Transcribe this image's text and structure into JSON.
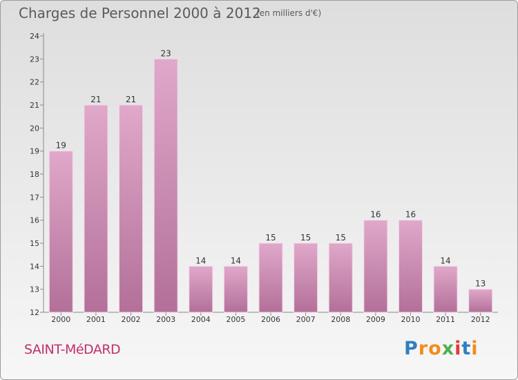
{
  "header": {
    "title": "Charges de Personnel 2000 à 2012",
    "subtitle": "(en milliers d'€)"
  },
  "footer": {
    "place": "SAINT-MéDARD",
    "logo_letters": [
      "P",
      "r",
      "o",
      "x",
      "i",
      "t",
      "i"
    ]
  },
  "colors": {
    "bar_top": "#e0a8ca",
    "bar_bottom": "#b37099",
    "place_text": "#c0306a",
    "logo": [
      "#2e7fc1",
      "#f28c1e",
      "#f28c1e",
      "#4caf50",
      "#e53935",
      "#2e7fc1",
      "#f28c1e"
    ]
  },
  "chart_data": {
    "type": "bar",
    "categories": [
      "2000",
      "2001",
      "2002",
      "2003",
      "2004",
      "2005",
      "2006",
      "2007",
      "2008",
      "2009",
      "2010",
      "2011",
      "2012"
    ],
    "values": [
      19,
      21,
      21,
      23,
      14,
      14,
      15,
      15,
      15,
      16,
      16,
      14,
      13
    ],
    "ylim": [
      12,
      24
    ],
    "yticks": [
      12,
      13,
      14,
      15,
      16,
      17,
      18,
      19,
      20,
      21,
      22,
      23,
      24
    ],
    "grid": false,
    "data_labels": true
  }
}
